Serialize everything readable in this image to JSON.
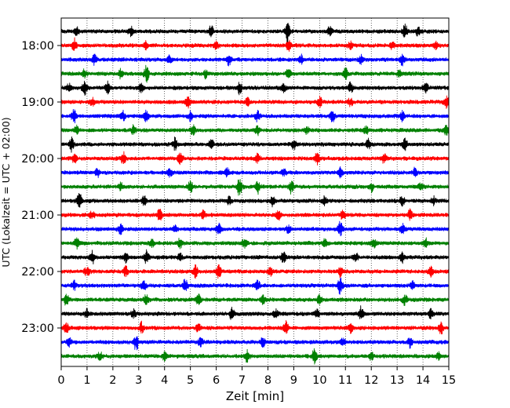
{
  "chart_data": {
    "type": "line",
    "title": "",
    "xlabel": "Zeit  [min]",
    "ylabel": "UTC (Lokalzeit = UTC + 02:00)",
    "xlim": [
      0,
      15
    ],
    "x_ticks": [
      0,
      1,
      2,
      3,
      4,
      5,
      6,
      7,
      8,
      9,
      10,
      11,
      12,
      13,
      14,
      15
    ],
    "y_tick_labels": [
      "18:00",
      "19:00",
      "20:00",
      "21:00",
      "22:00",
      "23:00"
    ],
    "start_time": "17:45",
    "trace_duration_min": 15,
    "trace_count": 24,
    "trace_colors": [
      "#000000",
      "#ff0000",
      "#0000ff",
      "#008000"
    ],
    "vertical_grid": "dotted",
    "series": [
      {
        "start": "17:45",
        "color": "#000000",
        "events_min": [
          [
            0.6,
            0.35
          ],
          [
            2.7,
            0.4
          ],
          [
            5.8,
            0.55
          ],
          [
            8.75,
            1.0
          ],
          [
            10.4,
            0.45
          ],
          [
            13.3,
            0.6
          ],
          [
            13.8,
            0.4
          ]
        ]
      },
      {
        "start": "18:00",
        "color": "#ff0000",
        "events_min": [
          [
            0.5,
            0.55
          ],
          [
            3.3,
            0.35
          ],
          [
            6.0,
            0.3
          ],
          [
            8.8,
            0.45
          ],
          [
            11.2,
            0.35
          ],
          [
            12.8,
            0.3
          ],
          [
            14.5,
            0.4
          ]
        ]
      },
      {
        "start": "18:15",
        "color": "#0000ff",
        "events_min": [
          [
            1.3,
            0.45
          ],
          [
            4.2,
            0.3
          ],
          [
            6.5,
            0.55
          ],
          [
            9.3,
            0.4
          ],
          [
            11.6,
            0.35
          ],
          [
            13.2,
            0.45
          ]
        ]
      },
      {
        "start": "18:30",
        "color": "#008000",
        "events_min": [
          [
            0.9,
            0.35
          ],
          [
            2.3,
            0.4
          ],
          [
            3.3,
            0.7
          ],
          [
            5.6,
            0.35
          ],
          [
            8.8,
            0.45
          ],
          [
            11.0,
            0.45
          ],
          [
            13.1,
            0.35
          ]
        ]
      },
      {
        "start": "18:45",
        "color": "#000000",
        "events_min": [
          [
            0.3,
            0.45
          ],
          [
            0.9,
            0.6
          ],
          [
            1.8,
            0.55
          ],
          [
            3.1,
            0.45
          ],
          [
            6.9,
            0.55
          ],
          [
            8.6,
            0.4
          ],
          [
            11.2,
            0.45
          ],
          [
            14.1,
            0.6
          ]
        ]
      },
      {
        "start": "19:00",
        "color": "#ff0000",
        "events_min": [
          [
            1.2,
            0.35
          ],
          [
            4.9,
            0.45
          ],
          [
            7.2,
            0.35
          ],
          [
            10.0,
            0.45
          ],
          [
            11.2,
            0.35
          ],
          [
            14.9,
            0.5
          ]
        ]
      },
      {
        "start": "19:15",
        "color": "#0000ff",
        "events_min": [
          [
            0.5,
            0.6
          ],
          [
            2.4,
            0.4
          ],
          [
            3.3,
            0.55
          ],
          [
            5.0,
            0.35
          ],
          [
            7.6,
            0.45
          ],
          [
            10.5,
            0.55
          ],
          [
            13.2,
            0.45
          ]
        ]
      },
      {
        "start": "19:30",
        "color": "#008000",
        "events_min": [
          [
            0.6,
            0.35
          ],
          [
            2.8,
            0.4
          ],
          [
            5.1,
            0.4
          ],
          [
            7.6,
            0.35
          ],
          [
            9.5,
            0.35
          ],
          [
            11.8,
            0.3
          ],
          [
            14.9,
            0.4
          ]
        ]
      },
      {
        "start": "19:45",
        "color": "#000000",
        "events_min": [
          [
            0.4,
            0.6
          ],
          [
            4.4,
            0.55
          ],
          [
            5.8,
            0.45
          ],
          [
            9.0,
            0.45
          ],
          [
            11.9,
            0.45
          ],
          [
            13.3,
            0.5
          ]
        ]
      },
      {
        "start": "20:00",
        "color": "#ff0000",
        "events_min": [
          [
            0.5,
            0.45
          ],
          [
            2.4,
            0.5
          ],
          [
            4.6,
            0.45
          ],
          [
            7.6,
            0.35
          ],
          [
            9.9,
            0.55
          ],
          [
            12.5,
            0.4
          ]
        ]
      },
      {
        "start": "20:15",
        "color": "#0000ff",
        "events_min": [
          [
            1.4,
            0.35
          ],
          [
            4.2,
            0.35
          ],
          [
            6.4,
            0.45
          ],
          [
            8.6,
            0.35
          ],
          [
            10.8,
            0.4
          ],
          [
            13.7,
            0.4
          ]
        ]
      },
      {
        "start": "20:30",
        "color": "#008000",
        "events_min": [
          [
            2.3,
            0.35
          ],
          [
            5.0,
            0.45
          ],
          [
            6.9,
            0.75
          ],
          [
            7.6,
            0.6
          ],
          [
            8.9,
            0.55
          ],
          [
            12.0,
            0.4
          ],
          [
            13.9,
            0.35
          ]
        ]
      },
      {
        "start": "20:45",
        "color": "#000000",
        "events_min": [
          [
            0.7,
            0.85
          ],
          [
            3.2,
            0.4
          ],
          [
            6.5,
            0.35
          ],
          [
            8.2,
            0.45
          ],
          [
            10.2,
            0.4
          ],
          [
            13.2,
            0.45
          ],
          [
            14.4,
            0.35
          ]
        ]
      },
      {
        "start": "21:00",
        "color": "#ff0000",
        "events_min": [
          [
            1.2,
            0.35
          ],
          [
            3.8,
            0.55
          ],
          [
            5.5,
            0.4
          ],
          [
            8.4,
            0.45
          ],
          [
            10.9,
            0.45
          ],
          [
            13.5,
            0.4
          ]
        ]
      },
      {
        "start": "21:15",
        "color": "#0000ff",
        "events_min": [
          [
            2.3,
            0.4
          ],
          [
            4.4,
            0.35
          ],
          [
            6.1,
            0.45
          ],
          [
            8.8,
            0.35
          ],
          [
            10.8,
            0.65
          ],
          [
            13.2,
            0.4
          ]
        ]
      },
      {
        "start": "21:30",
        "color": "#008000",
        "events_min": [
          [
            0.6,
            0.4
          ],
          [
            3.5,
            0.4
          ],
          [
            4.6,
            0.45
          ],
          [
            7.1,
            0.35
          ],
          [
            10.2,
            0.35
          ],
          [
            12.1,
            0.35
          ],
          [
            14.1,
            0.45
          ]
        ]
      },
      {
        "start": "21:45",
        "color": "#000000",
        "events_min": [
          [
            1.2,
            0.55
          ],
          [
            2.5,
            0.45
          ],
          [
            3.3,
            0.55
          ],
          [
            4.6,
            0.35
          ],
          [
            8.6,
            0.45
          ],
          [
            11.4,
            0.35
          ],
          [
            13.2,
            0.4
          ]
        ]
      },
      {
        "start": "22:00",
        "color": "#ff0000",
        "events_min": [
          [
            1.0,
            0.35
          ],
          [
            2.5,
            0.4
          ],
          [
            5.2,
            0.6
          ],
          [
            6.1,
            0.55
          ],
          [
            8.1,
            0.4
          ],
          [
            10.8,
            0.4
          ],
          [
            14.3,
            0.45
          ]
        ]
      },
      {
        "start": "22:15",
        "color": "#0000ff",
        "events_min": [
          [
            0.5,
            0.35
          ],
          [
            3.2,
            0.4
          ],
          [
            4.8,
            0.55
          ],
          [
            7.6,
            0.4
          ],
          [
            10.8,
            0.75
          ],
          [
            13.6,
            0.35
          ]
        ]
      },
      {
        "start": "22:30",
        "color": "#008000",
        "events_min": [
          [
            0.2,
            0.5
          ],
          [
            3.3,
            0.45
          ],
          [
            5.3,
            0.55
          ],
          [
            7.8,
            0.4
          ],
          [
            10.0,
            0.4
          ],
          [
            13.3,
            0.45
          ]
        ]
      },
      {
        "start": "22:45",
        "color": "#000000",
        "events_min": [
          [
            1.0,
            0.35
          ],
          [
            2.8,
            0.35
          ],
          [
            6.6,
            0.6
          ],
          [
            8.3,
            0.4
          ],
          [
            9.9,
            0.35
          ],
          [
            11.6,
            0.6
          ],
          [
            14.3,
            0.4
          ]
        ]
      },
      {
        "start": "23:00",
        "color": "#ff0000",
        "events_min": [
          [
            0.2,
            0.4
          ],
          [
            3.1,
            0.45
          ],
          [
            5.3,
            0.35
          ],
          [
            8.7,
            0.5
          ],
          [
            11.2,
            0.45
          ],
          [
            14.7,
            0.55
          ]
        ]
      },
      {
        "start": "23:15",
        "color": "#0000ff",
        "events_min": [
          [
            0.3,
            0.5
          ],
          [
            2.9,
            0.75
          ],
          [
            5.4,
            0.35
          ],
          [
            7.8,
            0.45
          ],
          [
            10.9,
            0.35
          ],
          [
            13.5,
            0.45
          ]
        ]
      },
      {
        "start": "23:30",
        "color": "#008000",
        "events_min": [
          [
            1.5,
            0.35
          ],
          [
            4.0,
            0.35
          ],
          [
            7.2,
            0.6
          ],
          [
            9.8,
            0.6
          ],
          [
            12.0,
            0.45
          ],
          [
            14.6,
            0.35
          ]
        ]
      }
    ]
  }
}
